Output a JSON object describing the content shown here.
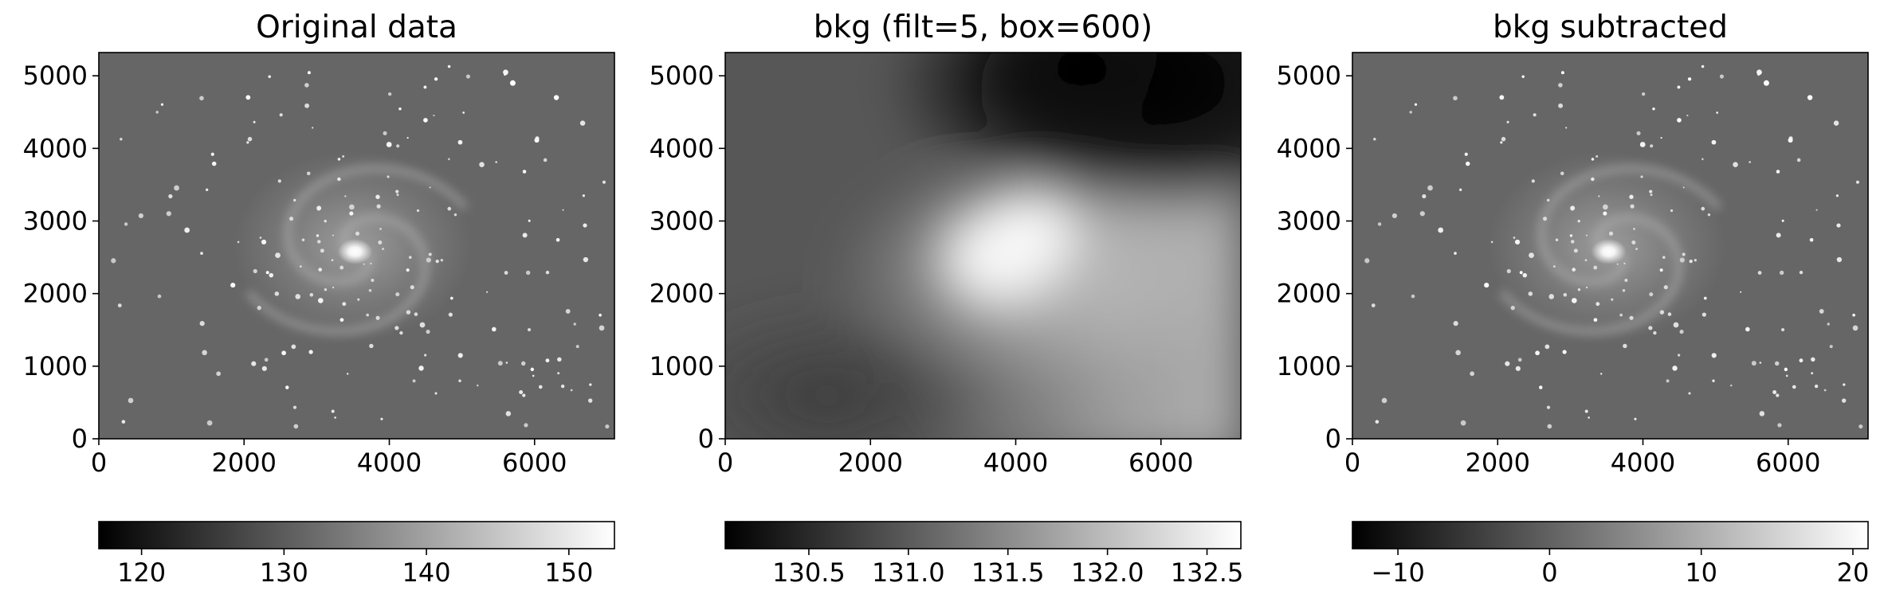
{
  "chart_data": [
    {
      "type": "heatmap",
      "title": "Original data",
      "xlabel": "",
      "ylabel": "",
      "xlim": [
        0,
        7100
      ],
      "ylim": [
        0,
        5320
      ],
      "xticks": [
        0,
        2000,
        4000,
        6000
      ],
      "xtick_labels": [
        "0",
        "2000",
        "4000",
        "6000"
      ],
      "yticks": [
        0,
        1000,
        2000,
        3000,
        4000,
        5000
      ],
      "ytick_labels": [
        "0",
        "1000",
        "2000",
        "3000",
        "4000",
        "5000"
      ],
      "image_content": "spiral-galaxy-with-stars",
      "colormap": "gray",
      "colorbar": {
        "orientation": "horizontal",
        "range": [
          117.0,
          153.2
        ],
        "ticks": [
          120,
          130,
          140,
          150
        ],
        "tick_labels": [
          "120",
          "130",
          "140",
          "150"
        ]
      }
    },
    {
      "type": "heatmap",
      "title": "bkg (filt=5, box=600)",
      "xlabel": "",
      "ylabel": "",
      "xlim": [
        0,
        7100
      ],
      "ylim": [
        0,
        5320
      ],
      "xticks": [
        0,
        2000,
        4000,
        6000
      ],
      "xtick_labels": [
        "0",
        "2000",
        "4000",
        "6000"
      ],
      "yticks": [
        0,
        1000,
        2000,
        3000,
        4000,
        5000
      ],
      "ytick_labels": [
        "0",
        "1000",
        "2000",
        "3000",
        "4000",
        "5000"
      ],
      "image_content": "smooth-background-model",
      "colormap": "gray",
      "colorbar": {
        "orientation": "horizontal",
        "range": [
          130.08,
          132.67
        ],
        "ticks": [
          130.5,
          131.0,
          131.5,
          132.0,
          132.5
        ],
        "tick_labels": [
          "130.5",
          "131.0",
          "131.5",
          "132.0",
          "132.5"
        ]
      }
    },
    {
      "type": "heatmap",
      "title": "bkg subtracted",
      "xlabel": "",
      "ylabel": "",
      "xlim": [
        0,
        7100
      ],
      "ylim": [
        0,
        5320
      ],
      "xticks": [
        0,
        2000,
        4000,
        6000
      ],
      "xtick_labels": [
        "0",
        "2000",
        "4000",
        "6000"
      ],
      "yticks": [
        0,
        1000,
        2000,
        3000,
        4000,
        5000
      ],
      "ytick_labels": [
        "0",
        "1000",
        "2000",
        "3000",
        "4000",
        "5000"
      ],
      "image_content": "spiral-galaxy-with-stars",
      "colormap": "gray",
      "colorbar": {
        "orientation": "horizontal",
        "range": [
          -13.0,
          21.0
        ],
        "ticks": [
          -10,
          0,
          10,
          20
        ],
        "tick_labels": [
          "−10",
          "0",
          "10",
          "20"
        ]
      }
    }
  ]
}
